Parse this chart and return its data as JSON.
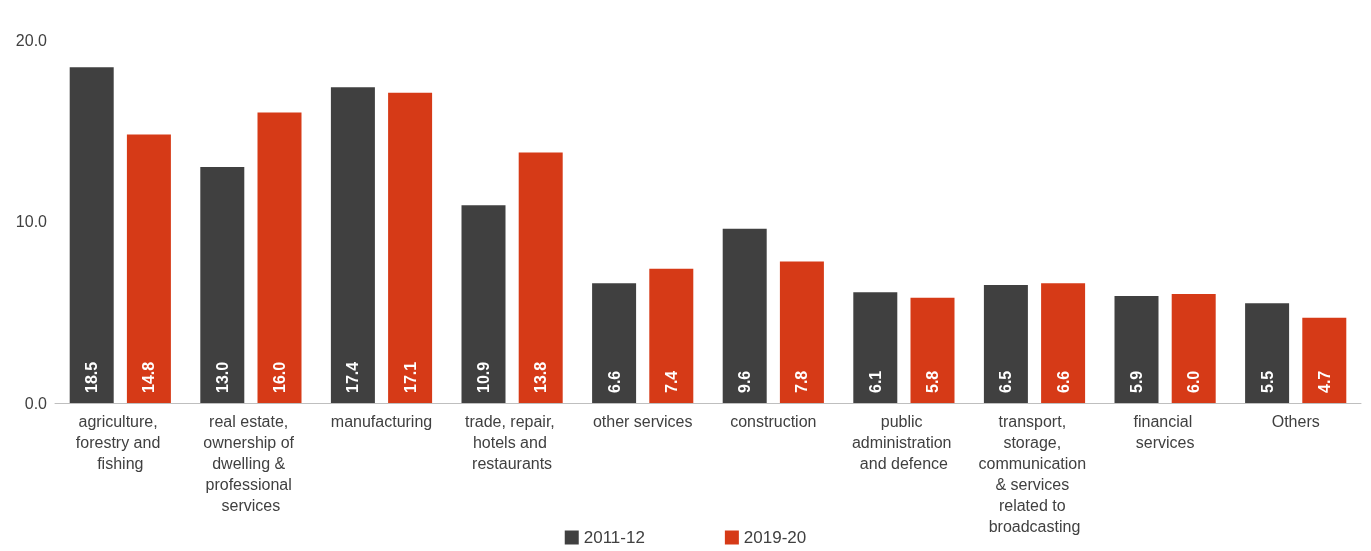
{
  "chart_data": {
    "type": "bar",
    "categories": [
      "agriculture, forestry and fishing",
      "real estate, ownership of dwelling & professional services",
      "manufacturing",
      "trade, repair, hotels and restaurants",
      "other services",
      "construction",
      "public administration and defence",
      "transport, storage, communication & services related to broadcasting",
      "financial services",
      "Others"
    ],
    "series": [
      {
        "name": "2011-12",
        "color": "#404040",
        "values": [
          18.5,
          13.0,
          17.4,
          10.9,
          6.6,
          9.6,
          6.1,
          6.5,
          5.9,
          5.5
        ],
        "value_labels": [
          "18.5",
          "13.0",
          "17.4",
          "10.9",
          "6.6",
          "9.6",
          "6.1",
          "6.5",
          "5.9",
          "5.5"
        ]
      },
      {
        "name": "2019-20",
        "color": "#d63a17",
        "values": [
          14.8,
          16.0,
          17.1,
          13.8,
          7.4,
          7.8,
          5.8,
          6.6,
          6.0,
          4.7
        ],
        "value_labels": [
          "14.8",
          "16.0",
          "17.1",
          "13.8",
          "7.4",
          "7.8",
          "5.8",
          "6.6",
          "6.0",
          "4.7"
        ]
      }
    ],
    "ylim": [
      0,
      20
    ],
    "yticks": [
      {
        "value": 0,
        "label": "0.0"
      },
      {
        "value": 10,
        "label": "10.0"
      },
      {
        "value": 20,
        "label": "20.0"
      }
    ],
    "grid": false,
    "legend": "bottom"
  }
}
